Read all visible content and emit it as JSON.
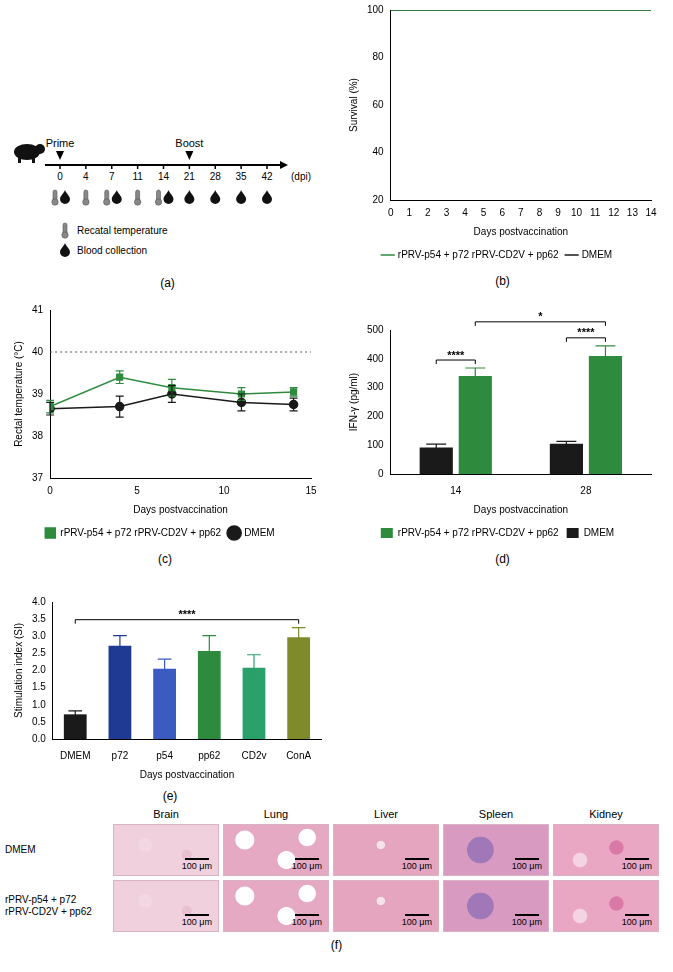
{
  "chart_data": [
    {
      "label": "(b)",
      "type": "line",
      "x_label": "Days postvaccination",
      "y_label": "Survival (%)",
      "x": [
        0,
        1,
        2,
        3,
        4,
        5,
        6,
        7,
        8,
        9,
        10,
        11,
        12,
        13,
        14
      ],
      "xlim": [
        0,
        14
      ],
      "xticks": [
        0,
        1,
        2,
        3,
        4,
        5,
        6,
        7,
        8,
        9,
        10,
        11,
        12,
        13,
        14
      ],
      "ylim": [
        20,
        100
      ],
      "yticks": [
        20,
        40,
        60,
        80,
        100
      ],
      "series": [
        {
          "name": "rPRV-p54 + p72 rPRV-CD2V + pp62",
          "color": "#2e8b3e",
          "values": [
            100,
            100,
            100,
            100,
            100,
            100,
            100,
            100,
            100,
            100,
            100,
            100,
            100,
            100,
            100
          ]
        },
        {
          "name": "DMEM",
          "color": "#1a1a1a",
          "values": [
            100,
            100,
            100,
            100,
            100,
            100,
            100,
            100,
            100,
            100,
            100,
            100,
            100,
            100,
            100
          ]
        }
      ],
      "legend": "bottom",
      "grid": false
    },
    {
      "label": "(c)",
      "type": "line",
      "x_label": "Days postvaccination",
      "y_label": "Rectal temperature (°C)",
      "x": [
        0,
        4,
        7,
        11,
        14
      ],
      "xlim": [
        0,
        15
      ],
      "xticks": [
        0,
        5,
        10,
        15
      ],
      "ylim": [
        37,
        41
      ],
      "yticks": [
        37,
        38,
        39,
        40,
        41
      ],
      "threshold": 40,
      "series": [
        {
          "name": "rPRV-p54 + p72 rPRV-CD2V + pp62",
          "color": "#2e8b3e",
          "marker": "square",
          "values": [
            38.7,
            39.4,
            39.15,
            39.0,
            39.05
          ],
          "errors": [
            0.15,
            0.15,
            0.2,
            0.15,
            0.1
          ]
        },
        {
          "name": "DMEM",
          "color": "#1a1a1a",
          "marker": "circle",
          "values": [
            38.65,
            38.7,
            39.0,
            38.8,
            38.75
          ],
          "errors": [
            0.15,
            0.25,
            0.2,
            0.2,
            0.15
          ]
        }
      ],
      "legend": "bottom",
      "grid": false
    },
    {
      "label": "(d)",
      "type": "bar",
      "x_label": "Days postvaccination",
      "y_label": "IFN-γ (pg/ml)",
      "categories": [
        "14",
        "28"
      ],
      "ylim": [
        0,
        500
      ],
      "yticks": [
        0,
        100,
        200,
        300,
        400,
        500
      ],
      "series": [
        {
          "name": "DMEM",
          "color": "#1a1a1a",
          "values": [
            92,
            105
          ],
          "errors": [
            12,
            8
          ]
        },
        {
          "name": "rPRV-p54 + p72 rPRV-CD2V + pp62",
          "color": "#2e8b3e",
          "values": [
            340,
            410
          ],
          "errors": [
            28,
            35
          ]
        }
      ],
      "annotations": [
        {
          "text": "****",
          "from": {
            "category": "14",
            "series": "DMEM"
          },
          "to": {
            "category": "14",
            "series": "rPRV-p54 + p72 rPRV-CD2V + pp62"
          }
        },
        {
          "text": "****",
          "from": {
            "category": "28",
            "series": "DMEM"
          },
          "to": {
            "category": "28",
            "series": "rPRV-p54 + p72 rPRV-CD2V + pp62"
          }
        },
        {
          "text": "*",
          "from": {
            "category": "14",
            "series": "rPRV-p54 + p72 rPRV-CD2V + pp62"
          },
          "to": {
            "category": "28",
            "series": "rPRV-p54 + p72 rPRV-CD2V + pp62"
          }
        }
      ],
      "legend": "bottom",
      "grid": false
    },
    {
      "label": "(e)",
      "type": "bar",
      "x_label": "Days postvaccination",
      "y_label": "Stimulation index (SI)",
      "categories": [
        "DMEM",
        "p72",
        "p54",
        "pp62",
        "CD2v",
        "ConA"
      ],
      "values": [
        0.72,
        2.72,
        2.05,
        2.57,
        2.08,
        2.97
      ],
      "errors": [
        0.1,
        0.3,
        0.28,
        0.45,
        0.38,
        0.28
      ],
      "colors": [
        "#1a1a1a",
        "#1f3a93",
        "#3a5bbf",
        "#2e8b3e",
        "#2aa06a",
        "#7f8a2a"
      ],
      "ylim": [
        0,
        4
      ],
      "yticks": [
        {
          "value": 0,
          "label": "0.0"
        },
        {
          "value": 0.5,
          "label": "0.5"
        },
        {
          "value": 1,
          "label": "1.0"
        },
        {
          "value": 1.5,
          "label": "1.5"
        },
        {
          "value": 2,
          "label": "2.0"
        },
        {
          "value": 2.5,
          "label": "2.5"
        },
        {
          "value": 3,
          "label": "3.0"
        },
        {
          "value": 3.5,
          "label": "3.5"
        },
        {
          "value": 4,
          "label": "4.0"
        }
      ],
      "annotations": [
        {
          "text": "****",
          "from": {
            "category": "DMEM"
          },
          "to": {
            "category": "ConA"
          }
        }
      ],
      "grid": false
    }
  ],
  "timeline": {
    "label": "(a)",
    "days": [
      0,
      4,
      7,
      11,
      14,
      21,
      28,
      35,
      42
    ],
    "unit": "(dpi)",
    "events": [
      {
        "text": "Prime",
        "day": 0
      },
      {
        "text": "Boost",
        "day": 21
      }
    ],
    "temperature_days": [
      0,
      4,
      7,
      11,
      14
    ],
    "blood_days": [
      0,
      7,
      14,
      21,
      28,
      35,
      42
    ],
    "legend": {
      "temperature": "Recatal temperature",
      "blood": "Blood collection"
    }
  },
  "histology": {
    "label": "(f)",
    "columns": [
      "Brain",
      "Lung",
      "Liver",
      "Spleen",
      "Kidney"
    ],
    "rows": [
      "DMEM",
      "rPRV-p54 + p72 rPRV-CD2V + pp62"
    ],
    "scale_bar": "100 μm"
  }
}
